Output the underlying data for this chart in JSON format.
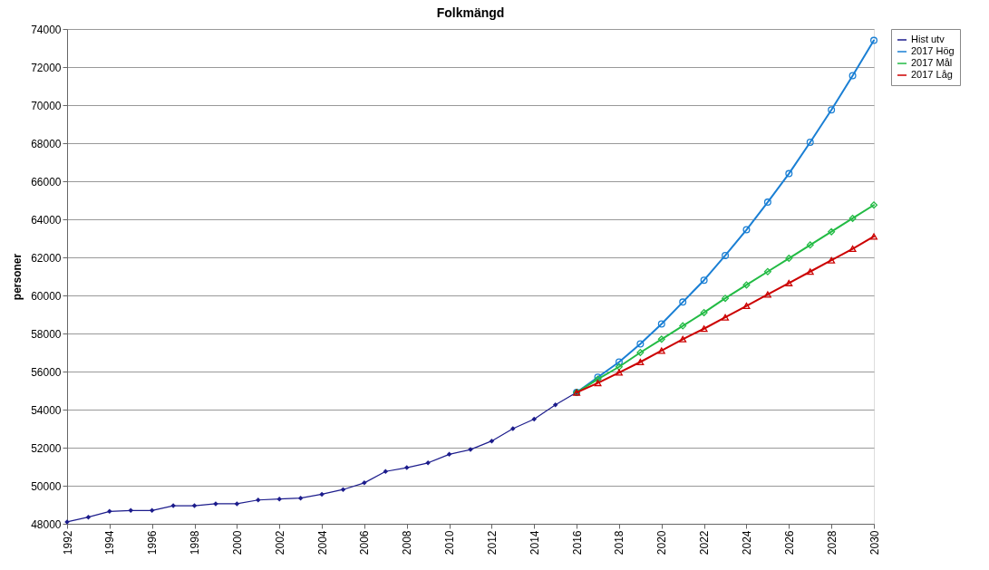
{
  "chart_data": {
    "type": "line",
    "title": "Folkmängd",
    "ylabel": "personer",
    "xlim": [
      1992,
      2030
    ],
    "xticks": [
      1992,
      1994,
      1996,
      1998,
      2000,
      2002,
      2004,
      2006,
      2008,
      2010,
      2012,
      2014,
      2016,
      2018,
      2020,
      2022,
      2024,
      2026,
      2028,
      2030
    ],
    "ylim": [
      48000,
      74000
    ],
    "yticks": [
      48000,
      50000,
      52000,
      54000,
      56000,
      58000,
      60000,
      62000,
      64000,
      66000,
      68000,
      70000,
      72000,
      74000
    ],
    "grid": "y",
    "legend": "right",
    "line_style": "solid",
    "series": [
      {
        "name": "Hist utv",
        "color": "#1c1c8c",
        "marker": "diamond",
        "x": [
          1992,
          1993,
          1994,
          1995,
          1996,
          1997,
          1998,
          1999,
          2000,
          2001,
          2002,
          2003,
          2004,
          2005,
          2006,
          2007,
          2008,
          2009,
          2010,
          2011,
          2012,
          2013,
          2014,
          2015,
          2016
        ],
        "values": [
          48100,
          48350,
          48650,
          48700,
          48700,
          48950,
          48950,
          49050,
          49050,
          49250,
          49300,
          49350,
          49550,
          49800,
          50150,
          50750,
          50950,
          51200,
          51650,
          51900,
          52350,
          53000,
          53500,
          54250,
          54900
        ]
      },
      {
        "name": "2017 Hög",
        "color": "#1a7fd4",
        "marker": "circle",
        "x": [
          2016,
          2017,
          2018,
          2019,
          2020,
          2021,
          2022,
          2023,
          2024,
          2025,
          2026,
          2027,
          2028,
          2029,
          2030
        ],
        "values": [
          54900,
          55700,
          56500,
          57450,
          58500,
          59650,
          60800,
          62100,
          63450,
          64900,
          66400,
          68050,
          69750,
          71550,
          73400
        ]
      },
      {
        "name": "2017 Mål",
        "color": "#22bb44",
        "marker": "diamond",
        "x": [
          2016,
          2017,
          2018,
          2019,
          2020,
          2021,
          2022,
          2023,
          2024,
          2025,
          2026,
          2027,
          2028,
          2029,
          2030
        ],
        "values": [
          54900,
          55600,
          56250,
          57000,
          57700,
          58400,
          59100,
          59850,
          60550,
          61250,
          61950,
          62650,
          63350,
          64050,
          64750
        ]
      },
      {
        "name": "2017 Låg",
        "color": "#cc0000",
        "marker": "triangle",
        "x": [
          2016,
          2017,
          2018,
          2019,
          2020,
          2021,
          2022,
          2023,
          2024,
          2025,
          2026,
          2027,
          2028,
          2029,
          2030
        ],
        "values": [
          54900,
          55400,
          55950,
          56500,
          57100,
          57700,
          58250,
          58850,
          59450,
          60050,
          60650,
          61250,
          61850,
          62450,
          63100
        ]
      }
    ]
  }
}
